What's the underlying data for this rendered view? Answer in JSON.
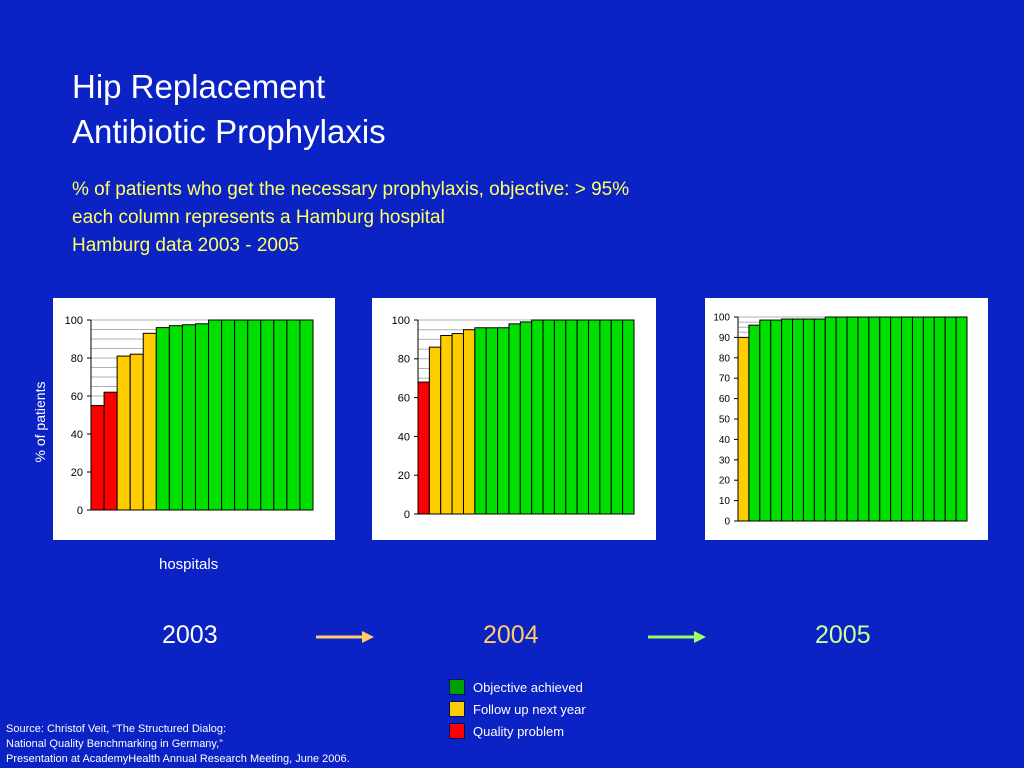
{
  "title": {
    "line1": "Hip Replacement",
    "line2": "Antibiotic Prophylaxis"
  },
  "subtitle": {
    "line1": "% of patients who get the necessary prophylaxis, objective: > 95%",
    "line2": "each column represents a Hamburg hospital",
    "line3": "Hamburg data 2003 - 2005"
  },
  "axis": {
    "ylabel": "% of patients",
    "xlabel": "hospitals"
  },
  "colors": {
    "background": "#0b22c4",
    "objective_achieved": "#00e000",
    "follow_up": "#ffcc00",
    "quality_problem": "#ff0000",
    "arrow_2003_2004": "#ffcc66",
    "arrow_2004_2005": "#99ff66",
    "year_2003": "#ffffff",
    "year_2004": "#ffcc66",
    "year_2005": "#ccff99"
  },
  "years": {
    "y2003": "2003",
    "y2004": "2004",
    "y2005": "2005"
  },
  "legend": {
    "items": [
      {
        "label": "Objective achieved",
        "color": "#00a000"
      },
      {
        "label": "Follow up next year",
        "color": "#ffcc00"
      },
      {
        "label": "Quality problem",
        "color": "#ff0000"
      }
    ]
  },
  "source": {
    "line1": "Source: Christof Veit, “The Structured Dialog:",
    "line2": "National Quality Benchmarking in Germany,”",
    "line3": "Presentation at AcademyHealth Annual Research Meeting, June 2006."
  },
  "chart_data": [
    {
      "type": "bar",
      "year": "2003",
      "ylim": [
        0,
        100
      ],
      "yticks": [
        0,
        20,
        40,
        60,
        80,
        100
      ],
      "grid": true,
      "values": [
        55,
        62,
        81,
        82,
        93,
        96,
        97,
        97.5,
        98,
        100,
        100,
        100,
        100,
        100,
        100,
        100,
        100
      ],
      "status": [
        "quality_problem",
        "quality_problem",
        "follow_up",
        "follow_up",
        "follow_up",
        "objective",
        "objective",
        "objective",
        "objective",
        "objective",
        "objective",
        "objective",
        "objective",
        "objective",
        "objective",
        "objective",
        "objective"
      ]
    },
    {
      "type": "bar",
      "year": "2004",
      "ylim": [
        0,
        100
      ],
      "yticks": [
        0,
        20,
        40,
        60,
        80,
        100
      ],
      "grid": true,
      "values": [
        68,
        86,
        92,
        93,
        95,
        96,
        96,
        96,
        98,
        99,
        100,
        100,
        100,
        100,
        100,
        100,
        100,
        100,
        100
      ],
      "status": [
        "quality_problem",
        "follow_up",
        "follow_up",
        "follow_up",
        "follow_up",
        "objective",
        "objective",
        "objective",
        "objective",
        "objective",
        "objective",
        "objective",
        "objective",
        "objective",
        "objective",
        "objective",
        "objective",
        "objective",
        "objective"
      ]
    },
    {
      "type": "bar",
      "year": "2005",
      "ylim": [
        0,
        100
      ],
      "yticks": [
        0,
        10,
        20,
        30,
        40,
        50,
        60,
        70,
        80,
        90,
        100
      ],
      "grid": true,
      "values": [
        90,
        96,
        98.5,
        98.5,
        99,
        99,
        99,
        99,
        100,
        100,
        100,
        100,
        100,
        100,
        100,
        100,
        100,
        100,
        100,
        100,
        100
      ],
      "status": [
        "follow_up",
        "objective",
        "objective",
        "objective",
        "objective",
        "objective",
        "objective",
        "objective",
        "objective",
        "objective",
        "objective",
        "objective",
        "objective",
        "objective",
        "objective",
        "objective",
        "objective",
        "objective",
        "objective",
        "objective",
        "objective"
      ]
    }
  ]
}
